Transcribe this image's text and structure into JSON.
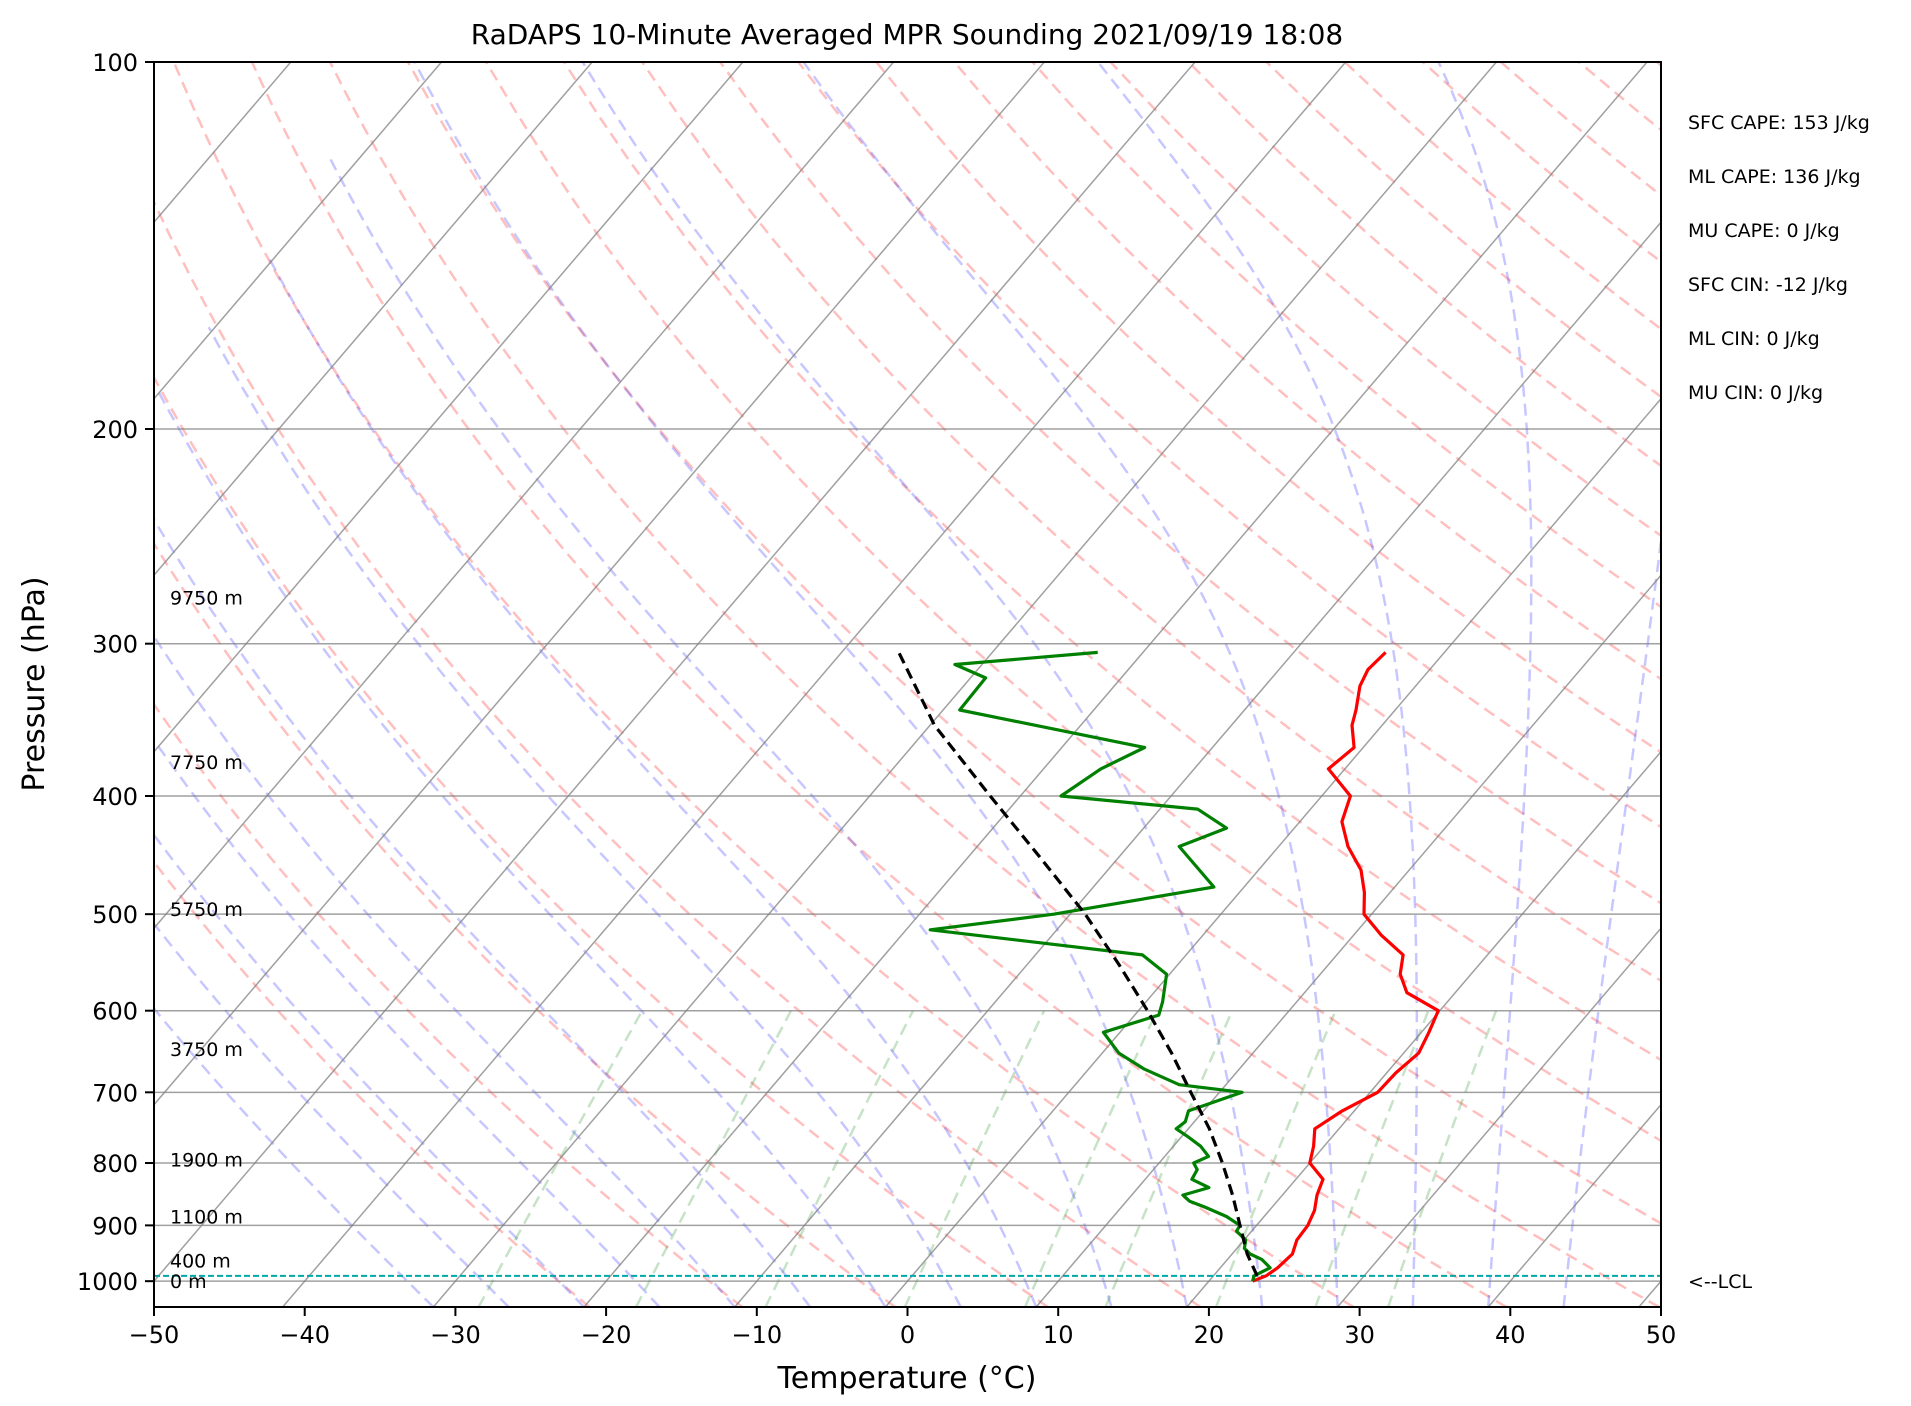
{
  "chart_data": {
    "type": "line",
    "title": "RaDAPS 10-Minute Averaged MPR Sounding 2021/09/19 18:08",
    "xlabel": "Temperature (°C)",
    "ylabel": "Pressure (hPa)",
    "xlim": [
      -50,
      50
    ],
    "ylim": [
      1050,
      100
    ],
    "y_scale": "log",
    "x_ticks": [
      -50,
      -40,
      -30,
      -20,
      -10,
      0,
      10,
      20,
      30,
      40,
      50
    ],
    "x_tick_labels": [
      "−50",
      "−40",
      "−30",
      "−20",
      "−10",
      "0",
      "10",
      "20",
      "30",
      "40",
      "50"
    ],
    "y_ticks": [
      100,
      200,
      300,
      400,
      500,
      600,
      700,
      800,
      900,
      1000
    ],
    "y_tick_labels": [
      "100",
      "200",
      "300",
      "400",
      "500",
      "600",
      "700",
      "800",
      "900",
      "1000"
    ],
    "grid": true,
    "skew_factor": 30,
    "stats": [
      "SFC CAPE: 153 J/kg",
      "ML CAPE: 136 J/kg",
      "MU CAPE: 0 J/kg",
      "SFC CIN: -12 J/kg",
      "ML CIN: 0 J/kg",
      "MU CIN: 0 J/kg"
    ],
    "height_labels": [
      {
        "label": "9750 m",
        "p": 275
      },
      {
        "label": "7750 m",
        "p": 375
      },
      {
        "label": "5750 m",
        "p": 495
      },
      {
        "label": "3750 m",
        "p": 645
      },
      {
        "label": "1900 m",
        "p": 795
      },
      {
        "label": "1100 m",
        "p": 885
      },
      {
        "label": "400 m",
        "p": 962
      },
      {
        "label": "0 m",
        "p": 1000
      }
    ],
    "lcl": {
      "label": "<--LCL",
      "p": 990
    },
    "series": [
      {
        "key": "temperature",
        "color": "#ff0000",
        "points": [
          [
            1000,
            22.9
          ],
          [
            990,
            23.5
          ],
          [
            975,
            23.8
          ],
          [
            950,
            24.0
          ],
          [
            925,
            23.5
          ],
          [
            900,
            23.4
          ],
          [
            875,
            23.0
          ],
          [
            850,
            22.3
          ],
          [
            825,
            21.8
          ],
          [
            800,
            20.0
          ],
          [
            775,
            19.3
          ],
          [
            750,
            18.4
          ],
          [
            725,
            19.2
          ],
          [
            700,
            20.5
          ],
          [
            675,
            20.6
          ],
          [
            650,
            21.0
          ],
          [
            625,
            20.5
          ],
          [
            600,
            19.9
          ],
          [
            580,
            16.8
          ],
          [
            560,
            15.3
          ],
          [
            540,
            14.4
          ],
          [
            520,
            11.8
          ],
          [
            500,
            9.5
          ],
          [
            480,
            8.3
          ],
          [
            460,
            6.8
          ],
          [
            440,
            4.6
          ],
          [
            420,
            2.8
          ],
          [
            400,
            1.9
          ],
          [
            380,
            -1.1
          ],
          [
            365,
            -0.6
          ],
          [
            350,
            -2.0
          ],
          [
            340,
            -2.6
          ],
          [
            325,
            -3.7
          ],
          [
            315,
            -4.1
          ],
          [
            305,
            -3.9
          ]
        ]
      },
      {
        "key": "dewpoint",
        "color": "#008000",
        "points": [
          [
            1000,
            22.9
          ],
          [
            990,
            22.7
          ],
          [
            975,
            23.3
          ],
          [
            960,
            22.3
          ],
          [
            950,
            21.2
          ],
          [
            940,
            20.5
          ],
          [
            925,
            20.1
          ],
          [
            910,
            19.0
          ],
          [
            900,
            18.9
          ],
          [
            885,
            17.5
          ],
          [
            870,
            15.6
          ],
          [
            860,
            14.2
          ],
          [
            850,
            13.4
          ],
          [
            838,
            14.7
          ],
          [
            825,
            13.1
          ],
          [
            810,
            12.9
          ],
          [
            800,
            12.3
          ],
          [
            790,
            12.9
          ],
          [
            775,
            11.8
          ],
          [
            760,
            10.3
          ],
          [
            750,
            9.2
          ],
          [
            740,
            9.4
          ],
          [
            725,
            9.0
          ],
          [
            700,
            11.5
          ],
          [
            690,
            6.9
          ],
          [
            670,
            3.7
          ],
          [
            650,
            1.1
          ],
          [
            625,
            -1.1
          ],
          [
            605,
            1.6
          ],
          [
            590,
            1.1
          ],
          [
            560,
            -0.2
          ],
          [
            540,
            -2.9
          ],
          [
            515,
            -18.4
          ],
          [
            500,
            -11.1
          ],
          [
            475,
            -2.0
          ],
          [
            440,
            -6.6
          ],
          [
            425,
            -4.5
          ],
          [
            410,
            -7.5
          ],
          [
            400,
            -17.3
          ],
          [
            380,
            -16.2
          ],
          [
            365,
            -14.5
          ],
          [
            340,
            -28.9
          ],
          [
            320,
            -29.0
          ],
          [
            312,
            -31.8
          ],
          [
            305,
            -23.0
          ]
        ]
      },
      {
        "key": "parcel",
        "color": "#000000",
        "dashed": true,
        "points": [
          [
            990,
            22.9
          ],
          [
            950,
            21.0
          ],
          [
            900,
            18.9
          ],
          [
            850,
            16.7
          ],
          [
            800,
            14.2
          ],
          [
            750,
            11.4
          ],
          [
            700,
            8.1
          ],
          [
            650,
            4.6
          ],
          [
            600,
            0.6
          ],
          [
            550,
            -3.9
          ],
          [
            500,
            -9.0
          ],
          [
            450,
            -15.1
          ],
          [
            400,
            -22.0
          ],
          [
            350,
            -29.7
          ],
          [
            305,
            -36.2
          ]
        ]
      }
    ]
  }
}
